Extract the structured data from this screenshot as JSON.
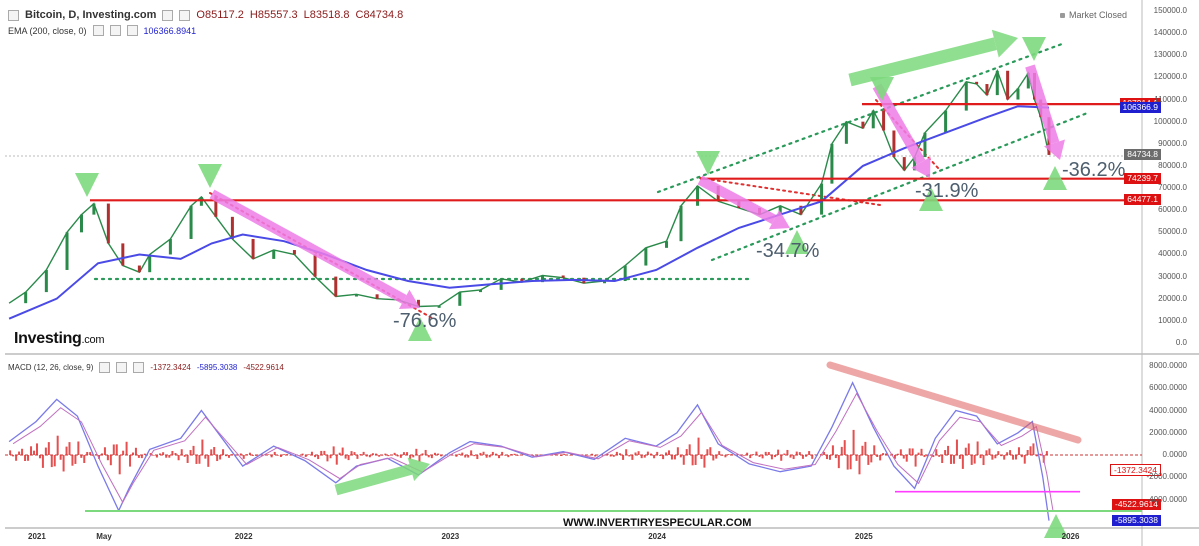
{
  "header": {
    "symbol": "Bitcoin, D, Investing.com",
    "open": "O85117.2",
    "high": "H85557.3",
    "low": "L83518.8",
    "close": "C84734.8",
    "ema_label": "EMA (200, close, 0)",
    "ema_value": "106366.8941",
    "market_status": "Market Closed"
  },
  "macd_header": {
    "label": "MACD (12, 26, close, 9)",
    "v1": "-1372.3424",
    "v2": "-5895.3038",
    "v3": "-4522.9614"
  },
  "logo": {
    "brand": "Investing",
    "suffix": ".com"
  },
  "watermark": "WWW.INVERTIRYESPECULAR.COM",
  "annotations": {
    "a1": "-76.6%",
    "a2": "-34.7%",
    "a3": "-31.9%",
    "a4": "-36.2%"
  },
  "price_tags": [
    {
      "text": "107914.1",
      "value": 107914.1,
      "style": "red"
    },
    {
      "text": "106366.9",
      "value": 106366.9,
      "style": "blue"
    },
    {
      "text": "84734.8",
      "value": 84734.8,
      "style": "gray"
    },
    {
      "text": "74239.7",
      "value": 74239.7,
      "style": "red"
    },
    {
      "text": "64477.1",
      "value": 64477.1,
      "style": "red"
    }
  ],
  "macd_tags": [
    {
      "text": "-1372.3424",
      "value": -1372.3424,
      "style": "wht"
    },
    {
      "text": "-4522.9614",
      "value": -4522.9614,
      "style": "red"
    },
    {
      "text": "-5895.3038",
      "value": -5895.3038,
      "style": "blue"
    }
  ],
  "colors": {
    "accent_red": "#e01b1b",
    "ema_blue": "#4a4ae6",
    "trend_green": "#2a9a5a",
    "arrow_pink": "#ee7de8",
    "arrow_green": "#7dd97d",
    "candle_up": "#2a8a4a",
    "candle_down": "#b03030"
  },
  "chart_data": [
    {
      "type": "line",
      "title": "Bitcoin, D, Investing.com",
      "ylim": [
        0,
        150000
      ],
      "y_ticks": [
        "150000.0",
        "140000.0",
        "130000.0",
        "120000.0",
        "110000.0",
        "100000.0",
        "90000.0",
        "80000.0",
        "70000.0",
        "60000.0",
        "50000.0",
        "40000.0",
        "30000.0",
        "20000.0",
        "10000.0",
        "0.0"
      ],
      "x_ticks": [
        "2021",
        "May",
        "2022",
        "2023",
        "2024",
        "2025",
        "2026"
      ],
      "x_tick_values": [
        2021.0,
        2021.33,
        2022.0,
        2023.0,
        2024.0,
        2025.0,
        2026.0
      ],
      "xlim": [
        2020.85,
        2026.35
      ],
      "series": [
        {
          "name": "Bitcoin",
          "x": [
            2020.87,
            2020.95,
            2021.05,
            2021.15,
            2021.22,
            2021.28,
            2021.35,
            2021.42,
            2021.5,
            2021.55,
            2021.65,
            2021.75,
            2021.8,
            2021.87,
            2021.95,
            2022.05,
            2022.15,
            2022.25,
            2022.35,
            2022.45,
            2022.55,
            2022.65,
            2022.75,
            2022.85,
            2022.95,
            2023.05,
            2023.15,
            2023.25,
            2023.35,
            2023.45,
            2023.55,
            2023.65,
            2023.75,
            2023.85,
            2023.95,
            2024.05,
            2024.12,
            2024.2,
            2024.3,
            2024.4,
            2024.5,
            2024.6,
            2024.7,
            2024.8,
            2024.85,
            2024.92,
            2025.0,
            2025.05,
            2025.1,
            2025.15,
            2025.2,
            2025.25,
            2025.3,
            2025.4,
            2025.5,
            2025.55,
            2025.6,
            2025.65,
            2025.7,
            2025.75,
            2025.8,
            2025.83,
            2025.86,
            2025.9
          ],
          "values": [
            18000,
            23000,
            33000,
            50000,
            58000,
            63000,
            45000,
            35000,
            32000,
            40000,
            47000,
            62000,
            66000,
            57000,
            47000,
            38000,
            42000,
            40000,
            30000,
            21000,
            22000,
            20000,
            19500,
            16500,
            16800,
            23000,
            24000,
            29000,
            27500,
            30500,
            29500,
            27000,
            28000,
            35000,
            43000,
            46000,
            62000,
            71000,
            64000,
            61000,
            58000,
            62000,
            58000,
            72000,
            90000,
            100000,
            97000,
            105000,
            96000,
            84000,
            78000,
            84000,
            95000,
            105000,
            118000,
            117000,
            112000,
            123000,
            110000,
            115000,
            122000,
            110000,
            102000,
            85000
          ]
        },
        {
          "name": "EMA (200, close, 0)",
          "x": [
            2020.87,
            2021.1,
            2021.3,
            2021.5,
            2021.7,
            2021.85,
            2022.0,
            2022.2,
            2022.4,
            2022.6,
            2022.8,
            2023.0,
            2023.2,
            2023.4,
            2023.6,
            2023.8,
            2024.0,
            2024.2,
            2024.4,
            2024.6,
            2024.8,
            2025.0,
            2025.2,
            2025.4,
            2025.6,
            2025.75,
            2025.9
          ],
          "values": [
            11000,
            20000,
            36000,
            40000,
            38000,
            45000,
            49000,
            46000,
            40000,
            33000,
            28000,
            25000,
            26500,
            28000,
            28500,
            28000,
            33000,
            43000,
            52000,
            58000,
            64000,
            80000,
            88000,
            95000,
            102000,
            107000,
            106366.9
          ]
        }
      ],
      "horizontal_levels": [
        107914.1,
        74239.7,
        64477.1
      ],
      "annotations": [
        "-76.6%",
        "-34.7%",
        "-31.9%",
        "-36.2%"
      ]
    },
    {
      "type": "line",
      "title": "MACD (12, 26, close, 9)",
      "ylim": [
        -6500,
        9000
      ],
      "y_ticks": [
        "8000.0000",
        "6000.0000",
        "4000.0000",
        "2000.0000",
        "0.0000",
        "-2000.0000",
        "-4000.0000"
      ],
      "x_ticks": [
        "2021",
        "May",
        "2022",
        "2023",
        "2024",
        "2025",
        "2026"
      ],
      "xlim": [
        2020.85,
        2026.35
      ],
      "series": [
        {
          "name": "MACD",
          "x": [
            2020.87,
            2021.0,
            2021.1,
            2021.2,
            2021.3,
            2021.4,
            2021.45,
            2021.55,
            2021.7,
            2021.8,
            2021.9,
            2022.0,
            2022.15,
            2022.3,
            2022.45,
            2022.55,
            2022.7,
            2022.85,
            2023.0,
            2023.1,
            2023.25,
            2023.4,
            2023.55,
            2023.7,
            2023.85,
            2024.0,
            2024.1,
            2024.2,
            2024.3,
            2024.45,
            2024.6,
            2024.75,
            2024.85,
            2024.95,
            2025.05,
            2025.15,
            2025.25,
            2025.35,
            2025.45,
            2025.55,
            2025.65,
            2025.75,
            2025.82,
            2025.87,
            2025.9
          ],
          "values": [
            1200,
            3000,
            5000,
            3500,
            -1000,
            -5000,
            -3000,
            500,
            1500,
            4000,
            1500,
            -1000,
            800,
            -500,
            -2500,
            -1000,
            -300,
            -1800,
            200,
            1200,
            800,
            -200,
            300,
            -400,
            1500,
            800,
            2000,
            4500,
            1000,
            -800,
            -1500,
            -1000,
            2500,
            6500,
            2500,
            -1000,
            -3000,
            1500,
            4000,
            3500,
            1000,
            2000,
            3000,
            -2000,
            -5895.3
          ]
        }
      ],
      "horizontal_levels": [
        -3300,
        -5200
      ]
    }
  ]
}
